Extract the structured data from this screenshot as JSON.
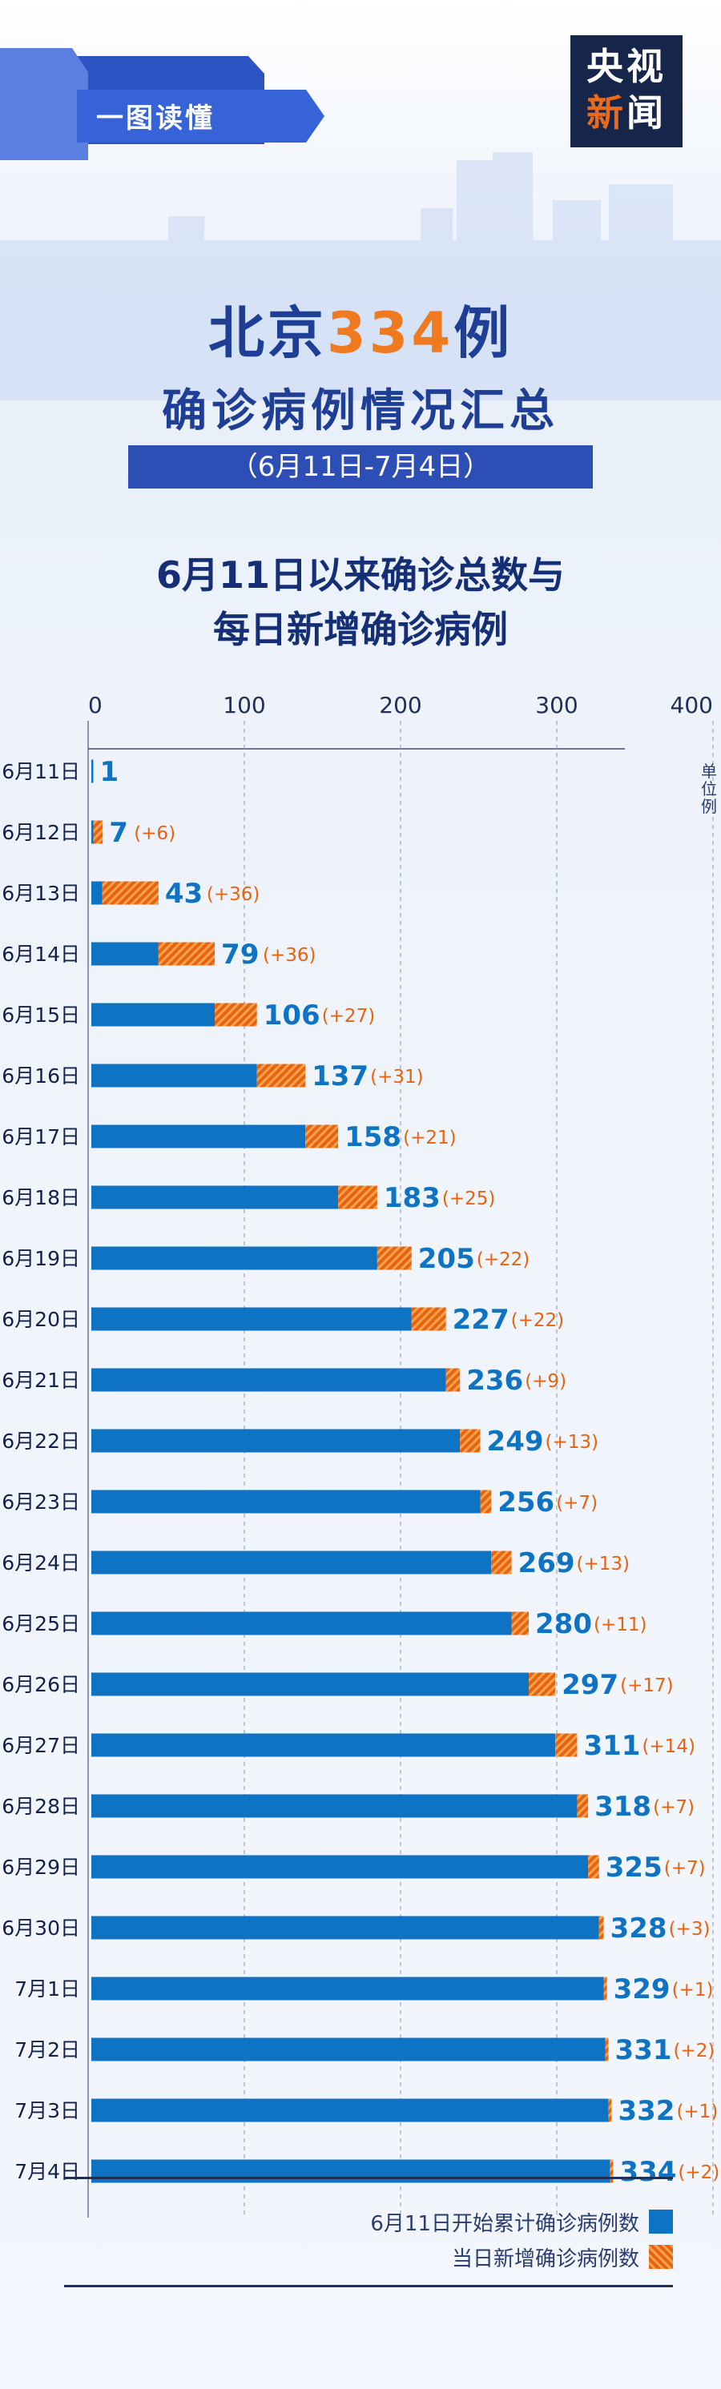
{
  "header": {
    "ribbon_label": "一图读懂",
    "logo_line1": "央视",
    "logo_line2a": "新",
    "logo_line2b": "闻",
    "title_part1": "北京",
    "title_number": "334",
    "title_part2": "例",
    "title_line2": "确诊病例情况汇总",
    "date_range": "（6月11日-7月4日）",
    "subtitle_line1": "6月11日以来确诊总数与",
    "subtitle_line2": "每日新增确诊病例"
  },
  "colors": {
    "total_bar": "#0f73c4",
    "new_bar": "#e8620f",
    "total_label": "#0f73c4",
    "new_label": "#e8620f",
    "title": "#1f3f96"
  },
  "chart_data": {
    "type": "bar",
    "orientation": "horizontal",
    "stacked": true,
    "unit_label": "单位例",
    "x_ticks": [
      0,
      100,
      200,
      300,
      400
    ],
    "xlim": [
      0,
      400
    ],
    "grid": true,
    "categories": [
      "6月11日",
      "6月12日",
      "6月13日",
      "6月14日",
      "6月15日",
      "6月16日",
      "6月17日",
      "6月18日",
      "6月19日",
      "6月20日",
      "6月21日",
      "6月22日",
      "6月23日",
      "6月24日",
      "6月25日",
      "6月26日",
      "6月27日",
      "6月28日",
      "6月29日",
      "6月30日",
      "7月1日",
      "7月2日",
      "7月3日",
      "7月4日"
    ],
    "series": [
      {
        "name": "6月11日开始累计确诊病例数",
        "values": [
          1,
          1,
          7,
          43,
          79,
          106,
          137,
          158,
          183,
          205,
          227,
          236,
          249,
          256,
          269,
          280,
          297,
          311,
          318,
          325,
          328,
          329,
          331,
          332
        ]
      },
      {
        "name": "当日新增确诊病例数",
        "values": [
          0,
          6,
          36,
          36,
          27,
          31,
          21,
          25,
          22,
          22,
          9,
          13,
          7,
          13,
          11,
          17,
          14,
          7,
          7,
          3,
          1,
          2,
          1,
          2
        ]
      }
    ],
    "total_labels": [
      "1",
      "7",
      "43",
      "79",
      "106",
      "137",
      "158",
      "183",
      "205",
      "227",
      "236",
      "249",
      "256",
      "269",
      "280",
      "297",
      "311",
      "318",
      "325",
      "328",
      "329",
      "331",
      "332",
      "334"
    ],
    "new_labels": [
      "",
      "(+6)",
      "(+36)",
      "(+36)",
      "(+27)",
      "(+31)",
      "(+21)",
      "(+25)",
      "(+22)",
      "(+22)",
      "(+9)",
      "(+13)",
      "(+7)",
      "(+13)",
      "(+11)",
      "(+17)",
      "(+14)",
      "(+7)",
      "(+7)",
      "(+3)",
      "(+1)",
      "(+2)",
      "(+1)",
      "(+2)"
    ],
    "legend_placement": "bottom-right"
  }
}
